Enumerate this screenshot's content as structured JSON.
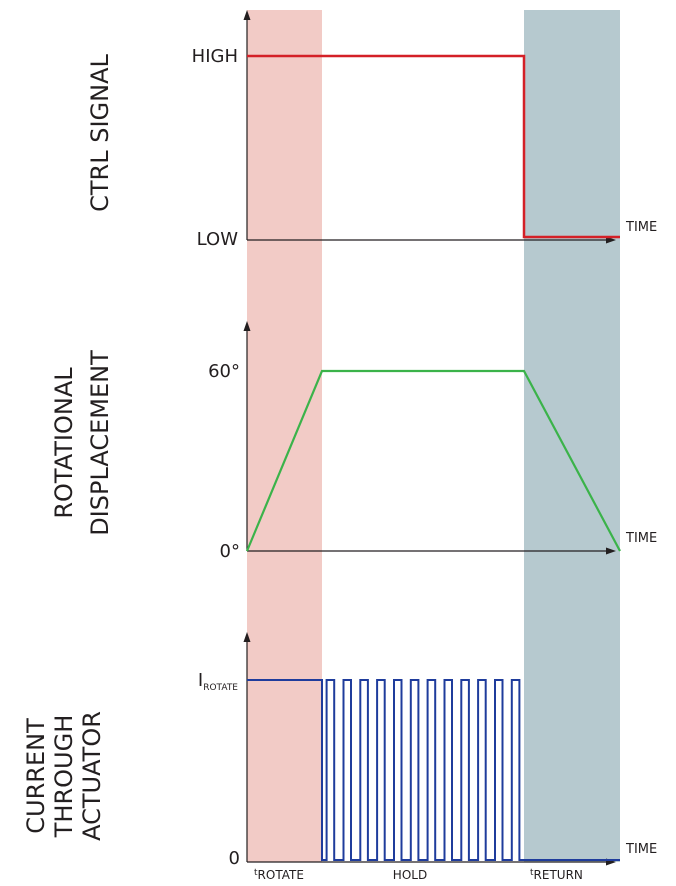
{
  "phases": {
    "rotate": {
      "label": "t",
      "sub": "ROTATE",
      "color": "#f2cbc6"
    },
    "hold": {
      "label": "HOLD"
    },
    "return": {
      "label": "t",
      "sub": "RETURN",
      "color": "#b6c9cf"
    }
  },
  "plots": {
    "ctrl": {
      "title": "CTRL SIGNAL",
      "y_high": "HIGH",
      "y_low": "LOW",
      "x_label": "TIME",
      "color": "#d42027",
      "levels": [
        "HIGH",
        "LOW"
      ]
    },
    "rotation": {
      "title_line1": "ROTATIONAL",
      "title_line2": "DISPLACEMENT",
      "y_top": "60°",
      "y_bottom": "0°",
      "x_label": "TIME",
      "color": "#3bb34a",
      "values_deg": [
        0,
        60,
        60,
        0
      ]
    },
    "current": {
      "title_line1": "CURRENT",
      "title_line2": "THROUGH",
      "title_line3": "ACTUATOR",
      "y_top": "I",
      "y_top_sub": "ROTATE",
      "y_bottom": "0",
      "x_label": "TIME",
      "color": "#1f3c9c",
      "hold_pulses": 12
    }
  }
}
